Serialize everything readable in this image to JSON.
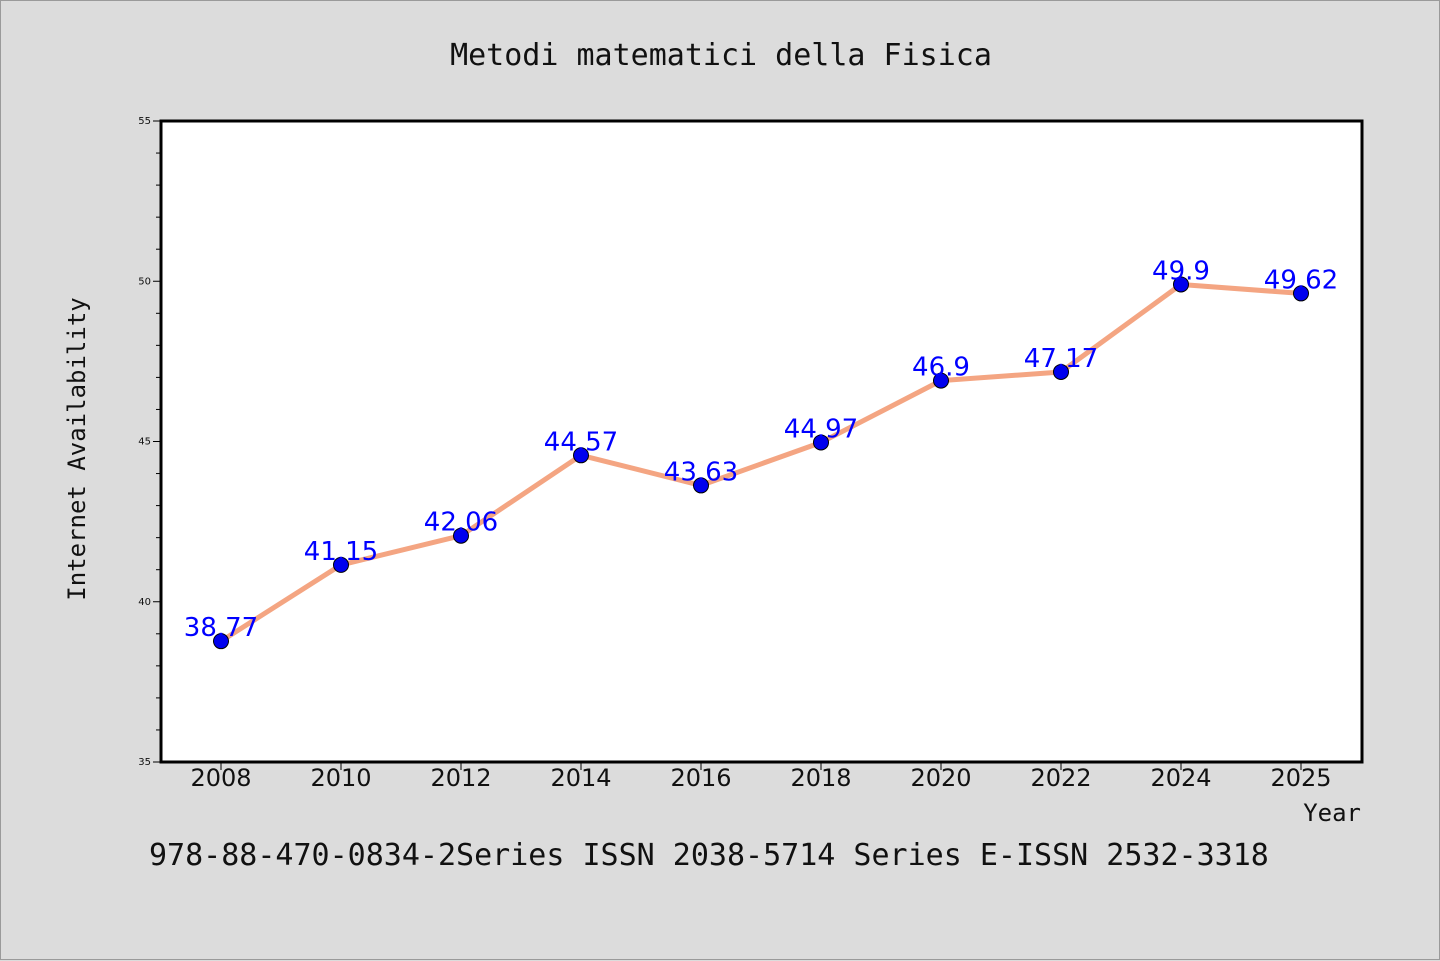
{
  "chart_data": {
    "type": "line",
    "title": "Metodi matematici della Fisica",
    "xlabel": "Year",
    "ylabel": "Internet Availability",
    "x": [
      "2008",
      "2010",
      "2012",
      "2014",
      "2016",
      "2018",
      "2020",
      "2022",
      "2024",
      "2025"
    ],
    "values": [
      38.77,
      41.15,
      42.06,
      44.57,
      43.63,
      44.97,
      46.9,
      47.17,
      49.9,
      49.62
    ],
    "data_labels": [
      "38.77",
      "41.15",
      "42.06",
      "44.57",
      "43.63",
      "44.97",
      "46.9",
      "47.17",
      "49.9",
      "49.62"
    ],
    "ylim": [
      35,
      55
    ],
    "yticks": [
      "35",
      "40",
      "45",
      "50",
      "55"
    ],
    "grid": false,
    "legend": "none",
    "colors": {
      "line": "#f4a582",
      "marker": "#0000ee",
      "label": "#0000ff"
    }
  },
  "footer": "978-88-470-0834-2Series ISSN 2038-5714 Series E-ISSN 2532-3318"
}
